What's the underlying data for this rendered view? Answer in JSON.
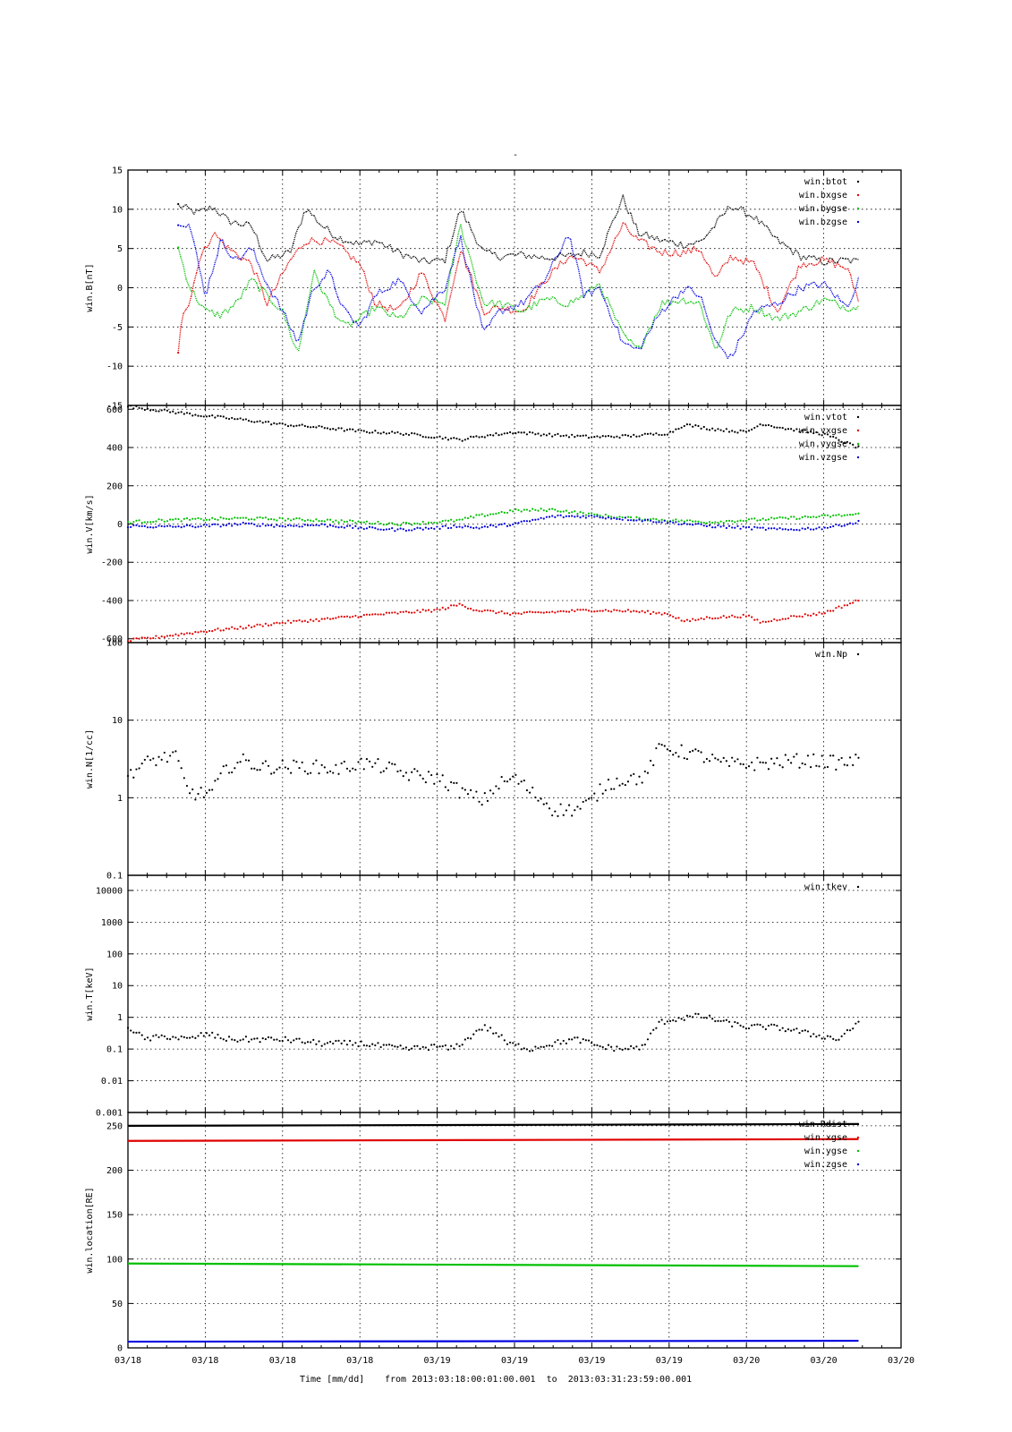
{
  "figure": {
    "title": "-",
    "xaxis": {
      "tick_labels": [
        "03/18",
        "03/18",
        "03/18",
        "03/18",
        "03/19",
        "03/19",
        "03/19",
        "03/19",
        "03/20",
        "03/20",
        "03/20"
      ],
      "footer_label": "Time [mm/dd]",
      "range_label": "from 2013:03:18:00:01:00.001  to  2013:03:31:23:59:00.001"
    }
  },
  "chart_data": [
    {
      "type": "scatter",
      "ylabel": "win.B[nT]",
      "yscale": "linear",
      "ylim": [
        -15,
        15
      ],
      "yticks": [
        -15,
        -10,
        -5,
        0,
        5,
        10,
        15
      ],
      "ytick_labels": [
        "-15",
        "-10",
        "-5",
        "0",
        "5",
        "10",
        "15"
      ],
      "grid": true,
      "legend_position": "top-right",
      "xlim": [
        0,
        10
      ],
      "series": [
        {
          "name": "win.btot",
          "color": "#000000",
          "x": [
            0.65,
            0.9,
            1.1,
            1.3,
            1.6,
            1.8,
            2.1,
            2.3,
            2.5,
            2.7,
            3.0,
            3.2,
            3.5,
            3.8,
            4.1,
            4.3,
            4.6,
            4.8,
            5.1,
            5.4,
            5.7,
            5.9,
            6.1,
            6.4,
            6.6,
            6.9,
            7.2,
            7.4,
            7.6,
            7.8,
            8.1,
            8.4,
            8.7,
            9.0,
            9.3,
            9.45
          ],
          "y": [
            10.5,
            9.5,
            10.3,
            8.5,
            7.8,
            3.5,
            4.5,
            10.2,
            8.0,
            6.5,
            5.5,
            6.0,
            4.5,
            3.3,
            3.5,
            10.0,
            4.5,
            4.0,
            4.2,
            3.8,
            4.0,
            4.5,
            4.2,
            11.5,
            7.0,
            6.0,
            5.5,
            5.8,
            8.0,
            10.5,
            9.0,
            6.0,
            4.0,
            3.3,
            3.5,
            3.3
          ]
        },
        {
          "name": "win.bxgse",
          "color": "#e00000",
          "x": [
            0.65,
            0.7,
            0.8,
            0.9,
            1.1,
            1.3,
            1.6,
            1.8,
            2.1,
            2.3,
            2.5,
            2.7,
            3.0,
            3.2,
            3.5,
            3.8,
            4.1,
            4.3,
            4.6,
            4.8,
            5.1,
            5.4,
            5.7,
            5.9,
            6.1,
            6.4,
            6.6,
            6.9,
            7.2,
            7.4,
            7.6,
            7.8,
            8.1,
            8.4,
            8.7,
            9.0,
            9.3,
            9.45
          ],
          "y": [
            -8.0,
            -3.0,
            -2.0,
            3.0,
            7.0,
            5.0,
            3.0,
            -2.0,
            3.5,
            6.0,
            6.0,
            5.5,
            3.0,
            -2.0,
            -3.0,
            2.0,
            -4.0,
            5.0,
            -3.0,
            -2.5,
            -3.0,
            1.0,
            4.0,
            3.5,
            2.0,
            8.0,
            6.0,
            4.5,
            4.5,
            5.0,
            1.0,
            4.0,
            3.0,
            -3.0,
            3.0,
            3.5,
            2.5,
            -1.5
          ]
        },
        {
          "name": "win.bygse",
          "color": "#00c000",
          "x": [
            0.65,
            0.8,
            1.0,
            1.2,
            1.4,
            1.6,
            1.8,
            2.0,
            2.2,
            2.4,
            2.6,
            2.8,
            3.0,
            3.2,
            3.5,
            3.8,
            4.1,
            4.3,
            4.6,
            4.8,
            5.1,
            5.4,
            5.7,
            5.9,
            6.1,
            6.4,
            6.6,
            6.9,
            7.2,
            7.4,
            7.6,
            7.8,
            8.1,
            8.4,
            8.7,
            9.0,
            9.3,
            9.45
          ],
          "y": [
            5.0,
            0.0,
            -3.0,
            -3.5,
            -2.0,
            1.0,
            -1.0,
            -3.0,
            -8.5,
            2.0,
            -2.0,
            -5.0,
            -4.0,
            -2.5,
            -4.0,
            -1.5,
            -2.0,
            8.0,
            -2.0,
            -2.0,
            -3.0,
            -1.5,
            -2.0,
            -1.0,
            0.5,
            -6.0,
            -8.0,
            -2.0,
            -1.5,
            -2.0,
            -8.0,
            -3.0,
            -2.5,
            -4.0,
            -3.0,
            -1.5,
            -2.5,
            -2.5
          ]
        },
        {
          "name": "win.bzgse",
          "color": "#0000e0",
          "x": [
            0.65,
            0.8,
            1.0,
            1.2,
            1.4,
            1.6,
            1.8,
            2.0,
            2.2,
            2.4,
            2.6,
            2.8,
            3.0,
            3.2,
            3.5,
            3.8,
            4.1,
            4.3,
            4.6,
            4.8,
            5.1,
            5.4,
            5.7,
            5.9,
            6.1,
            6.4,
            6.6,
            6.9,
            7.2,
            7.4,
            7.6,
            7.8,
            8.1,
            8.4,
            8.7,
            9.0,
            9.3,
            9.45
          ],
          "y": [
            8.5,
            8.0,
            -1.0,
            6.0,
            3.5,
            5.0,
            0.5,
            -3.0,
            -7.0,
            0.0,
            2.0,
            -3.0,
            -5.0,
            -1.0,
            1.0,
            -3.0,
            0.0,
            6.5,
            -6.0,
            -3.0,
            -2.0,
            1.0,
            7.0,
            -1.0,
            0.0,
            -7.0,
            -8.0,
            -3.0,
            0.0,
            -1.0,
            -7.0,
            -9.0,
            -3.0,
            -2.0,
            0.0,
            0.5,
            -2.5,
            1.0
          ]
        }
      ]
    },
    {
      "type": "scatter",
      "ylabel": "win.V[km/s]",
      "yscale": "linear",
      "ylim": [
        -620,
        620
      ],
      "yticks": [
        -600,
        -400,
        -200,
        0,
        200,
        400,
        600
      ],
      "ytick_labels": [
        "-600",
        "-400",
        "-200",
        "0",
        "200",
        "400",
        "600"
      ],
      "grid": true,
      "legend_position": "top-right",
      "xlim": [
        0,
        10
      ],
      "series": [
        {
          "name": "win.vtot",
          "color": "#000000",
          "x": [
            0.0,
            0.5,
            1.0,
            1.5,
            2.0,
            2.5,
            3.0,
            3.5,
            4.0,
            4.3,
            4.5,
            5.0,
            5.5,
            6.0,
            6.5,
            7.0,
            7.2,
            7.5,
            8.0,
            8.2,
            8.5,
            9.0,
            9.45
          ],
          "y": [
            615,
            590,
            565,
            545,
            520,
            505,
            485,
            475,
            455,
            440,
            455,
            480,
            465,
            455,
            460,
            475,
            520,
            500,
            480,
            525,
            500,
            470,
            400
          ]
        },
        {
          "name": "win.vxgse",
          "color": "#e00000",
          "x": [
            0.0,
            0.5,
            1.0,
            1.5,
            2.0,
            2.5,
            3.0,
            3.5,
            4.0,
            4.3,
            4.5,
            5.0,
            5.5,
            6.0,
            6.5,
            7.0,
            7.2,
            7.5,
            8.0,
            8.2,
            8.5,
            9.0,
            9.45
          ],
          "y": [
            -610,
            -585,
            -560,
            -540,
            -515,
            -500,
            -480,
            -465,
            -450,
            -420,
            -450,
            -470,
            -460,
            -450,
            -455,
            -470,
            -510,
            -490,
            -480,
            -515,
            -490,
            -465,
            -400
          ]
        },
        {
          "name": "win.vygse",
          "color": "#00c000",
          "x": [
            0.0,
            0.5,
            1.0,
            1.5,
            2.0,
            2.5,
            3.0,
            3.5,
            4.0,
            4.3,
            4.5,
            5.0,
            5.5,
            6.0,
            6.5,
            7.0,
            7.5,
            8.0,
            8.5,
            9.0,
            9.45
          ],
          "y": [
            10,
            20,
            25,
            30,
            25,
            20,
            10,
            0,
            10,
            20,
            40,
            70,
            75,
            50,
            30,
            20,
            10,
            20,
            30,
            40,
            50
          ]
        },
        {
          "name": "win.vzgse",
          "color": "#0000e0",
          "x": [
            0.0,
            0.5,
            1.0,
            1.5,
            2.0,
            2.5,
            3.0,
            3.5,
            4.0,
            4.3,
            4.5,
            5.0,
            5.5,
            6.0,
            6.5,
            7.0,
            7.5,
            8.0,
            8.5,
            9.0,
            9.45
          ],
          "y": [
            -10,
            -15,
            -10,
            0,
            -10,
            -5,
            -20,
            -30,
            -20,
            -10,
            -20,
            0,
            40,
            40,
            25,
            10,
            -10,
            -20,
            -30,
            -20,
            10
          ]
        }
      ]
    },
    {
      "type": "scatter",
      "ylabel": "win.N[1/cc]",
      "yscale": "log",
      "ylim": [
        0.1,
        100
      ],
      "yticks": [
        0.1,
        1,
        10,
        100
      ],
      "ytick_labels": [
        "0.1",
        "1",
        "10",
        "100"
      ],
      "grid": true,
      "legend_position": "top-right",
      "xlim": [
        0,
        10
      ],
      "series": [
        {
          "name": "win.Np",
          "color": "#000000",
          "x": [
            0.0,
            0.3,
            0.6,
            0.75,
            0.9,
            1.1,
            1.3,
            1.5,
            1.7,
            2.0,
            2.4,
            2.7,
            3.0,
            3.3,
            3.6,
            4.0,
            4.3,
            4.6,
            4.8,
            5.0,
            5.2,
            5.5,
            5.8,
            6.0,
            6.2,
            6.5,
            6.7,
            6.9,
            7.1,
            7.4,
            7.7,
            8.0,
            8.3,
            8.6,
            8.9,
            9.2,
            9.45
          ],
          "y": [
            2.0,
            3.0,
            3.5,
            1.3,
            1.1,
            1.2,
            2.5,
            3.0,
            2.5,
            2.5,
            2.5,
            2.3,
            2.8,
            2.5,
            2.0,
            1.8,
            1.2,
            0.9,
            1.5,
            1.8,
            1.2,
            0.7,
            0.7,
            0.9,
            1.5,
            1.8,
            1.8,
            4.5,
            4.0,
            3.5,
            2.7,
            2.7,
            2.8,
            3.0,
            3.0,
            2.8,
            3.0
          ]
        }
      ]
    },
    {
      "type": "scatter",
      "ylabel": "win.T[keV]",
      "yscale": "log",
      "ylim": [
        0.001,
        30000
      ],
      "yticks": [
        0.001,
        0.01,
        0.1,
        1,
        10,
        100,
        1000,
        10000
      ],
      "ytick_labels": [
        "0.001",
        "0.01",
        "0.1",
        "1",
        "10",
        "100",
        "1000",
        "10000"
      ],
      "grid": true,
      "legend_position": "top-right",
      "xlim": [
        0,
        10
      ],
      "series": [
        {
          "name": "win.tkev",
          "color": "#000000",
          "x": [
            0.0,
            0.2,
            0.5,
            0.8,
            1.0,
            1.3,
            1.6,
            2.0,
            2.5,
            3.0,
            3.3,
            3.6,
            4.0,
            4.2,
            4.4,
            4.6,
            4.9,
            5.2,
            5.5,
            5.8,
            6.1,
            6.4,
            6.7,
            6.9,
            7.1,
            7.4,
            7.7,
            8.0,
            8.3,
            8.6,
            8.8,
            9.0,
            9.2,
            9.45
          ],
          "y": [
            0.5,
            0.2,
            0.25,
            0.2,
            0.3,
            0.2,
            0.2,
            0.2,
            0.15,
            0.15,
            0.12,
            0.1,
            0.12,
            0.1,
            0.2,
            0.5,
            0.15,
            0.1,
            0.15,
            0.2,
            0.12,
            0.1,
            0.12,
            0.7,
            0.9,
            1.1,
            0.7,
            0.5,
            0.5,
            0.4,
            0.3,
            0.25,
            0.2,
            0.6
          ]
        }
      ]
    },
    {
      "type": "line",
      "ylabel": "win.location[RE]",
      "yscale": "linear",
      "ylim": [
        0,
        265
      ],
      "yticks": [
        0,
        50,
        100,
        150,
        200,
        250
      ],
      "ytick_labels": [
        "0",
        "50",
        "100",
        "150",
        "200",
        "250"
      ],
      "grid": true,
      "legend_position": "top-right",
      "xlim": [
        0,
        10
      ],
      "series": [
        {
          "name": "win.Rdist",
          "color": "#000000",
          "x": [
            0,
            9.45
          ],
          "y": [
            250,
            252
          ]
        },
        {
          "name": "win.xgse",
          "color": "#e00000",
          "x": [
            0,
            9.45
          ],
          "y": [
            233,
            235
          ]
        },
        {
          "name": "win.ygse",
          "color": "#00c000",
          "x": [
            0,
            9.45
          ],
          "y": [
            95,
            92
          ]
        },
        {
          "name": "win.zgse",
          "color": "#0000e0",
          "x": [
            0,
            9.45
          ],
          "y": [
            7,
            8
          ]
        }
      ]
    }
  ]
}
